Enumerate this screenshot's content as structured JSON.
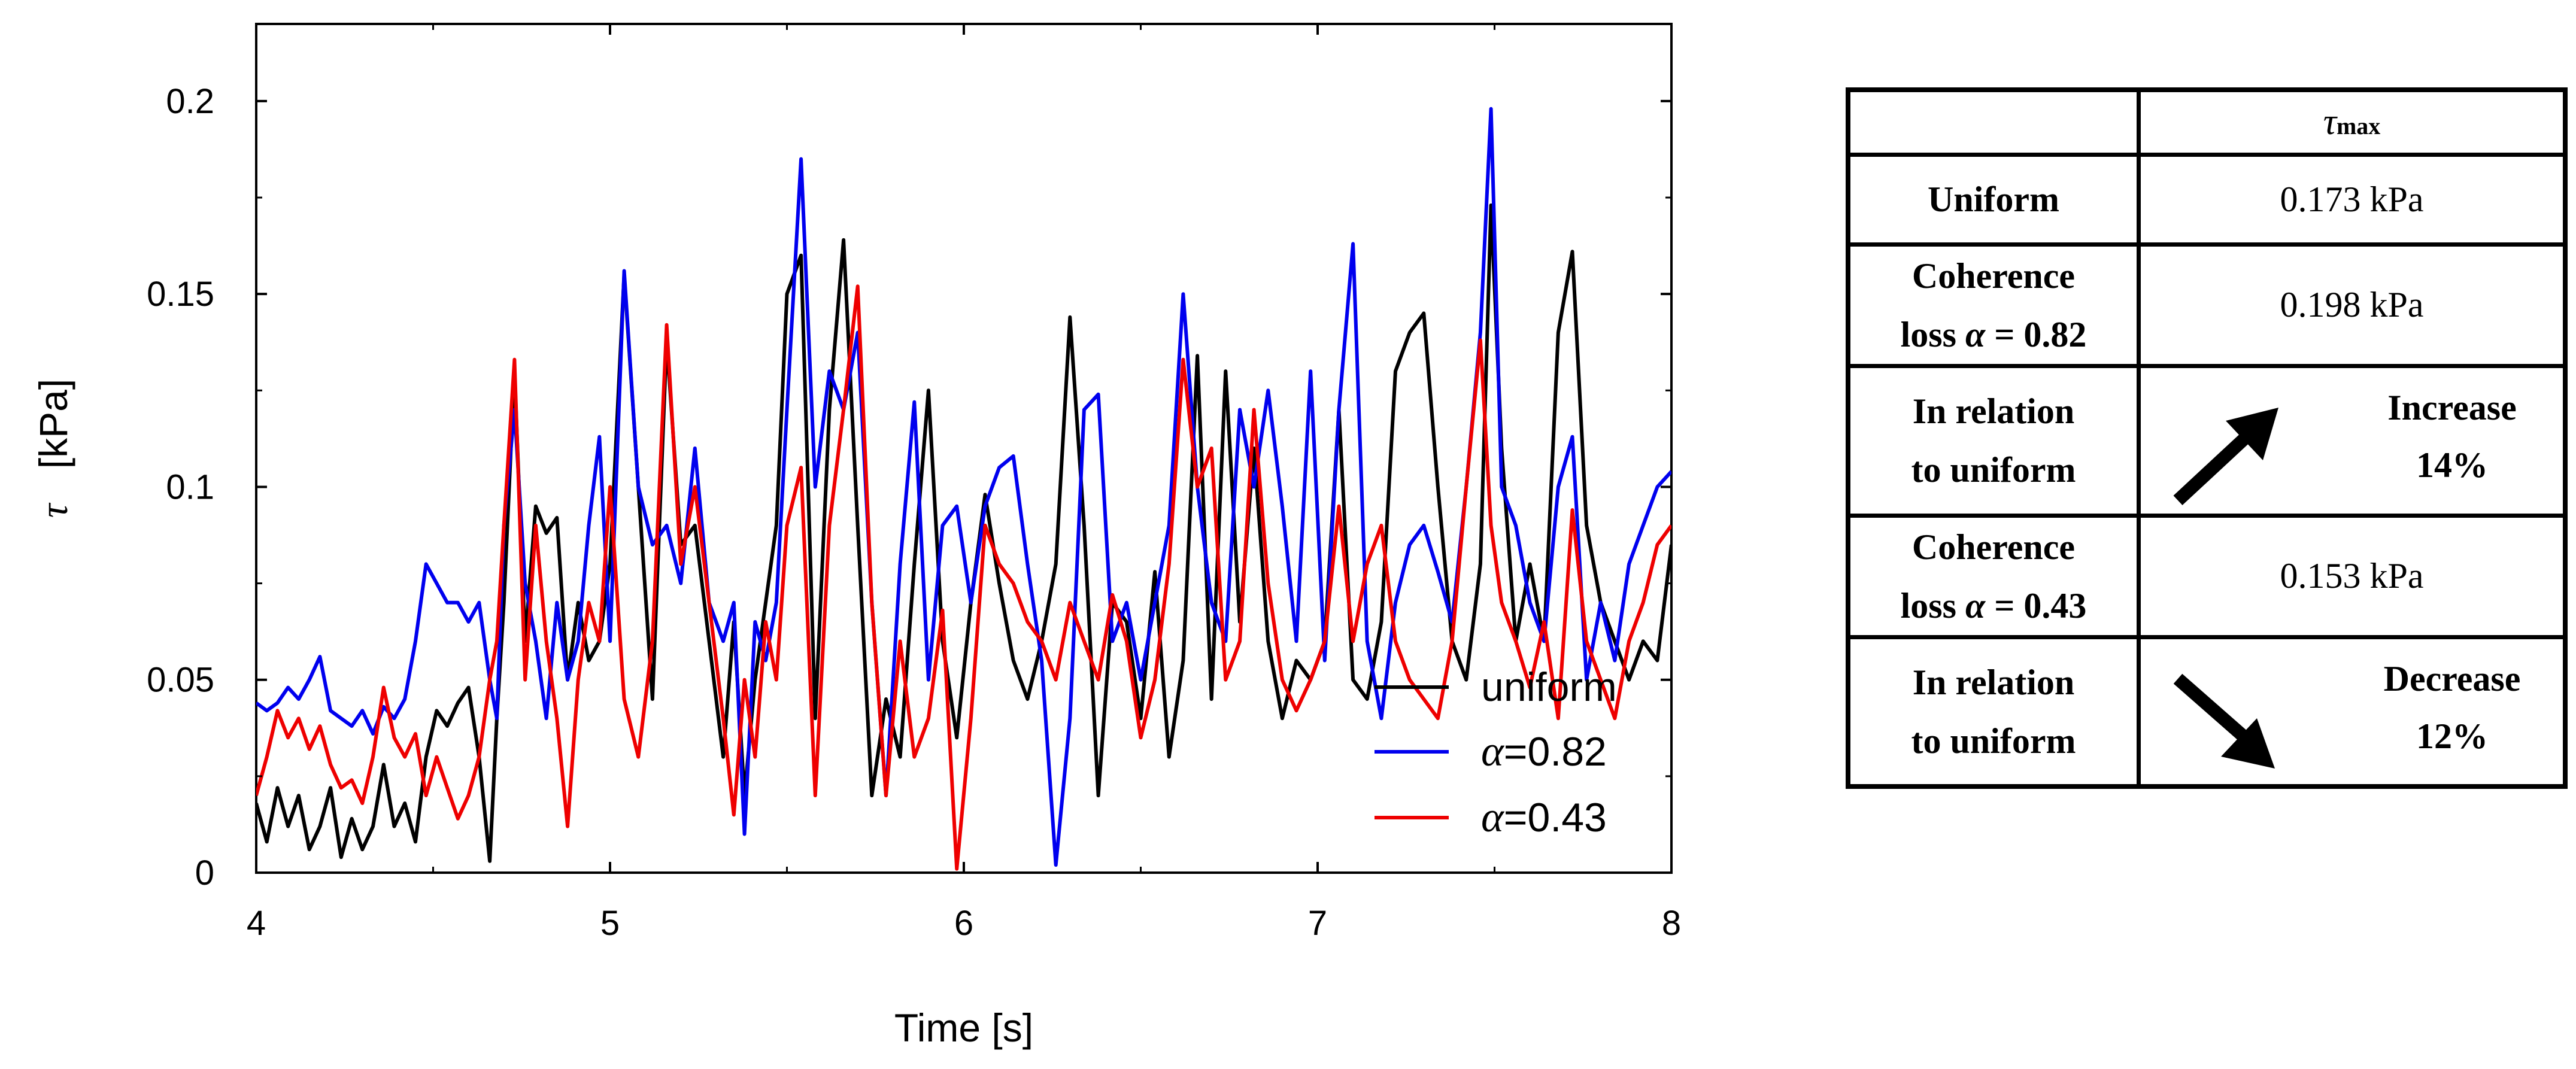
{
  "chart_data": {
    "type": "line",
    "title": "",
    "xlabel": "Time [s]",
    "ylabel_symbol": "τ",
    "ylabel_unit": "[kPa]",
    "xlim": [
      4,
      8
    ],
    "ylim": [
      0,
      0.22
    ],
    "x_ticks": [
      4,
      5,
      6,
      7,
      8
    ],
    "x_tick_labels": [
      "4",
      "5",
      "6",
      "7",
      "8"
    ],
    "y_ticks": [
      0,
      0.05,
      0.1,
      0.15,
      0.2
    ],
    "y_tick_labels": [
      "0",
      "0.05",
      "0.1",
      "0.15",
      "0.2"
    ],
    "grid": false,
    "legend_position": "bottom-right",
    "series": [
      {
        "name": "uniform",
        "legend_symbol": "",
        "legend_text": "uniform",
        "color": "#000000",
        "x": [
          4.0,
          4.03,
          4.06,
          4.09,
          4.12,
          4.15,
          4.18,
          4.21,
          4.24,
          4.27,
          4.3,
          4.33,
          4.36,
          4.39,
          4.42,
          4.45,
          4.48,
          4.51,
          4.54,
          4.57,
          4.6,
          4.63,
          4.66,
          4.68,
          4.7,
          4.73,
          4.76,
          4.79,
          4.82,
          4.85,
          4.88,
          4.91,
          4.94,
          4.97,
          5.0,
          5.04,
          5.08,
          5.12,
          5.16,
          5.2,
          5.24,
          5.28,
          5.32,
          5.35,
          5.38,
          5.41,
          5.44,
          5.47,
          5.5,
          5.54,
          5.58,
          5.62,
          5.66,
          5.7,
          5.74,
          5.78,
          5.82,
          5.86,
          5.9,
          5.94,
          5.98,
          6.02,
          6.06,
          6.1,
          6.14,
          6.18,
          6.22,
          6.26,
          6.3,
          6.34,
          6.38,
          6.42,
          6.46,
          6.5,
          6.54,
          6.58,
          6.62,
          6.66,
          6.7,
          6.74,
          6.78,
          6.82,
          6.86,
          6.9,
          6.94,
          6.98,
          7.02,
          7.06,
          7.1,
          7.14,
          7.18,
          7.22,
          7.26,
          7.3,
          7.34,
          7.38,
          7.42,
          7.46,
          7.49,
          7.52,
          7.56,
          7.6,
          7.64,
          7.68,
          7.72,
          7.76,
          7.8,
          7.84,
          7.88,
          7.92,
          7.96,
          8.0
        ],
        "y": [
          0.018,
          0.008,
          0.022,
          0.012,
          0.02,
          0.006,
          0.012,
          0.022,
          0.004,
          0.014,
          0.006,
          0.012,
          0.028,
          0.012,
          0.018,
          0.008,
          0.03,
          0.042,
          0.038,
          0.044,
          0.048,
          0.03,
          0.003,
          0.04,
          0.07,
          0.13,
          0.06,
          0.095,
          0.088,
          0.092,
          0.05,
          0.07,
          0.055,
          0.06,
          0.08,
          0.155,
          0.1,
          0.045,
          0.138,
          0.085,
          0.09,
          0.06,
          0.03,
          0.065,
          0.02,
          0.05,
          0.07,
          0.09,
          0.15,
          0.16,
          0.04,
          0.12,
          0.164,
          0.09,
          0.02,
          0.045,
          0.03,
          0.08,
          0.125,
          0.06,
          0.035,
          0.07,
          0.098,
          0.075,
          0.055,
          0.045,
          0.06,
          0.08,
          0.144,
          0.09,
          0.02,
          0.07,
          0.065,
          0.04,
          0.078,
          0.03,
          0.055,
          0.134,
          0.045,
          0.13,
          0.065,
          0.11,
          0.06,
          0.04,
          0.055,
          0.05,
          0.06,
          0.12,
          0.05,
          0.045,
          0.065,
          0.13,
          0.14,
          0.145,
          0.1,
          0.06,
          0.05,
          0.08,
          0.173,
          0.11,
          0.06,
          0.08,
          0.06,
          0.14,
          0.161,
          0.09,
          0.07,
          0.06,
          0.05,
          0.06,
          0.055,
          0.085
        ]
      },
      {
        "name": "alpha=0.82",
        "legend_symbol": "α",
        "legend_text": "=0.82",
        "color": "#0000ee",
        "x": [
          4.0,
          4.03,
          4.06,
          4.09,
          4.12,
          4.15,
          4.18,
          4.21,
          4.24,
          4.27,
          4.3,
          4.33,
          4.36,
          4.39,
          4.42,
          4.45,
          4.48,
          4.51,
          4.54,
          4.57,
          4.6,
          4.63,
          4.66,
          4.68,
          4.7,
          4.73,
          4.76,
          4.79,
          4.82,
          4.85,
          4.88,
          4.91,
          4.94,
          4.97,
          5.0,
          5.04,
          5.08,
          5.12,
          5.16,
          5.2,
          5.24,
          5.28,
          5.32,
          5.35,
          5.38,
          5.41,
          5.44,
          5.47,
          5.5,
          5.54,
          5.58,
          5.62,
          5.66,
          5.7,
          5.74,
          5.78,
          5.82,
          5.86,
          5.9,
          5.94,
          5.98,
          6.02,
          6.06,
          6.1,
          6.14,
          6.18,
          6.22,
          6.26,
          6.3,
          6.34,
          6.38,
          6.42,
          6.46,
          6.5,
          6.54,
          6.58,
          6.62,
          6.66,
          6.7,
          6.74,
          6.78,
          6.82,
          6.86,
          6.9,
          6.94,
          6.98,
          7.02,
          7.06,
          7.1,
          7.14,
          7.18,
          7.22,
          7.26,
          7.3,
          7.34,
          7.38,
          7.42,
          7.46,
          7.49,
          7.52,
          7.56,
          7.6,
          7.64,
          7.68,
          7.72,
          7.76,
          7.8,
          7.84,
          7.88,
          7.92,
          7.96,
          8.0
        ],
        "y": [
          0.044,
          0.042,
          0.044,
          0.048,
          0.045,
          0.05,
          0.056,
          0.042,
          0.04,
          0.038,
          0.042,
          0.036,
          0.043,
          0.04,
          0.045,
          0.06,
          0.08,
          0.075,
          0.07,
          0.07,
          0.065,
          0.07,
          0.05,
          0.04,
          0.09,
          0.12,
          0.075,
          0.06,
          0.04,
          0.07,
          0.05,
          0.06,
          0.09,
          0.113,
          0.06,
          0.156,
          0.1,
          0.085,
          0.09,
          0.075,
          0.11,
          0.07,
          0.06,
          0.07,
          0.01,
          0.065,
          0.055,
          0.07,
          0.12,
          0.185,
          0.1,
          0.13,
          0.12,
          0.14,
          0.07,
          0.02,
          0.08,
          0.122,
          0.05,
          0.09,
          0.095,
          0.07,
          0.095,
          0.105,
          0.108,
          0.08,
          0.055,
          0.002,
          0.04,
          0.12,
          0.124,
          0.06,
          0.07,
          0.05,
          0.07,
          0.09,
          0.15,
          0.1,
          0.07,
          0.06,
          0.12,
          0.1,
          0.125,
          0.095,
          0.06,
          0.13,
          0.055,
          0.12,
          0.163,
          0.06,
          0.04,
          0.07,
          0.085,
          0.09,
          0.078,
          0.065,
          0.1,
          0.14,
          0.198,
          0.1,
          0.09,
          0.07,
          0.06,
          0.1,
          0.113,
          0.05,
          0.07,
          0.055,
          0.08,
          0.09,
          0.1,
          0.104
        ]
      },
      {
        "name": "alpha=0.43",
        "legend_symbol": "α",
        "legend_text": "=0.43",
        "color": "#ee0000",
        "x": [
          4.0,
          4.03,
          4.06,
          4.09,
          4.12,
          4.15,
          4.18,
          4.21,
          4.24,
          4.27,
          4.3,
          4.33,
          4.36,
          4.39,
          4.42,
          4.45,
          4.48,
          4.51,
          4.54,
          4.57,
          4.6,
          4.63,
          4.66,
          4.68,
          4.7,
          4.73,
          4.76,
          4.79,
          4.82,
          4.85,
          4.88,
          4.91,
          4.94,
          4.97,
          5.0,
          5.04,
          5.08,
          5.12,
          5.16,
          5.2,
          5.24,
          5.28,
          5.32,
          5.35,
          5.38,
          5.41,
          5.44,
          5.47,
          5.5,
          5.54,
          5.58,
          5.62,
          5.66,
          5.7,
          5.74,
          5.78,
          5.82,
          5.86,
          5.9,
          5.94,
          5.98,
          6.02,
          6.06,
          6.1,
          6.14,
          6.18,
          6.22,
          6.26,
          6.3,
          6.34,
          6.38,
          6.42,
          6.46,
          6.5,
          6.54,
          6.58,
          6.62,
          6.66,
          6.7,
          6.74,
          6.78,
          6.82,
          6.86,
          6.9,
          6.94,
          6.98,
          7.02,
          7.06,
          7.1,
          7.14,
          7.18,
          7.22,
          7.26,
          7.3,
          7.34,
          7.38,
          7.42,
          7.46,
          7.49,
          7.52,
          7.56,
          7.6,
          7.64,
          7.68,
          7.72,
          7.76,
          7.8,
          7.84,
          7.88,
          7.92,
          7.96,
          8.0
        ],
        "y": [
          0.02,
          0.03,
          0.042,
          0.035,
          0.04,
          0.032,
          0.038,
          0.028,
          0.022,
          0.024,
          0.018,
          0.03,
          0.048,
          0.035,
          0.03,
          0.036,
          0.02,
          0.03,
          0.022,
          0.014,
          0.02,
          0.03,
          0.05,
          0.06,
          0.09,
          0.133,
          0.05,
          0.09,
          0.06,
          0.04,
          0.012,
          0.05,
          0.07,
          0.06,
          0.1,
          0.045,
          0.03,
          0.06,
          0.142,
          0.08,
          0.1,
          0.07,
          0.04,
          0.015,
          0.05,
          0.03,
          0.065,
          0.05,
          0.09,
          0.105,
          0.02,
          0.09,
          0.12,
          0.152,
          0.07,
          0.02,
          0.06,
          0.03,
          0.04,
          0.068,
          0.001,
          0.04,
          0.09,
          0.08,
          0.075,
          0.065,
          0.06,
          0.05,
          0.07,
          0.06,
          0.05,
          0.072,
          0.06,
          0.035,
          0.05,
          0.08,
          0.133,
          0.1,
          0.11,
          0.05,
          0.06,
          0.12,
          0.075,
          0.05,
          0.042,
          0.05,
          0.06,
          0.095,
          0.06,
          0.08,
          0.09,
          0.06,
          0.05,
          0.045,
          0.04,
          0.06,
          0.1,
          0.138,
          0.09,
          0.07,
          0.06,
          0.048,
          0.065,
          0.04,
          0.094,
          0.06,
          0.05,
          0.04,
          0.06,
          0.07,
          0.085,
          0.09
        ]
      }
    ]
  },
  "table": {
    "header": {
      "corner": "",
      "tau_symbol": "τ",
      "tau_sub": "max"
    },
    "rows": [
      {
        "label": "Uniform",
        "value": "0.173 kPa"
      },
      {
        "label_line1": "Coherence",
        "label_line2_prefix": "loss ",
        "label_line2_sym": "α",
        "label_line2_suffix": " = 0.82",
        "value": "0.198 kPa"
      },
      {
        "label_line1": "In relation",
        "label_line2": "to uniform",
        "change_word": "Increase",
        "change_pct": "14%",
        "direction": "up"
      },
      {
        "label_line1": "Coherence",
        "label_line2_prefix": "loss ",
        "label_line2_sym": "α",
        "label_line2_suffix": " = 0.43",
        "value": "0.153 kPa"
      },
      {
        "label_line1": "In relation",
        "label_line2": "to uniform",
        "change_word": "Decrease",
        "change_pct": "12%",
        "direction": "down"
      }
    ]
  }
}
